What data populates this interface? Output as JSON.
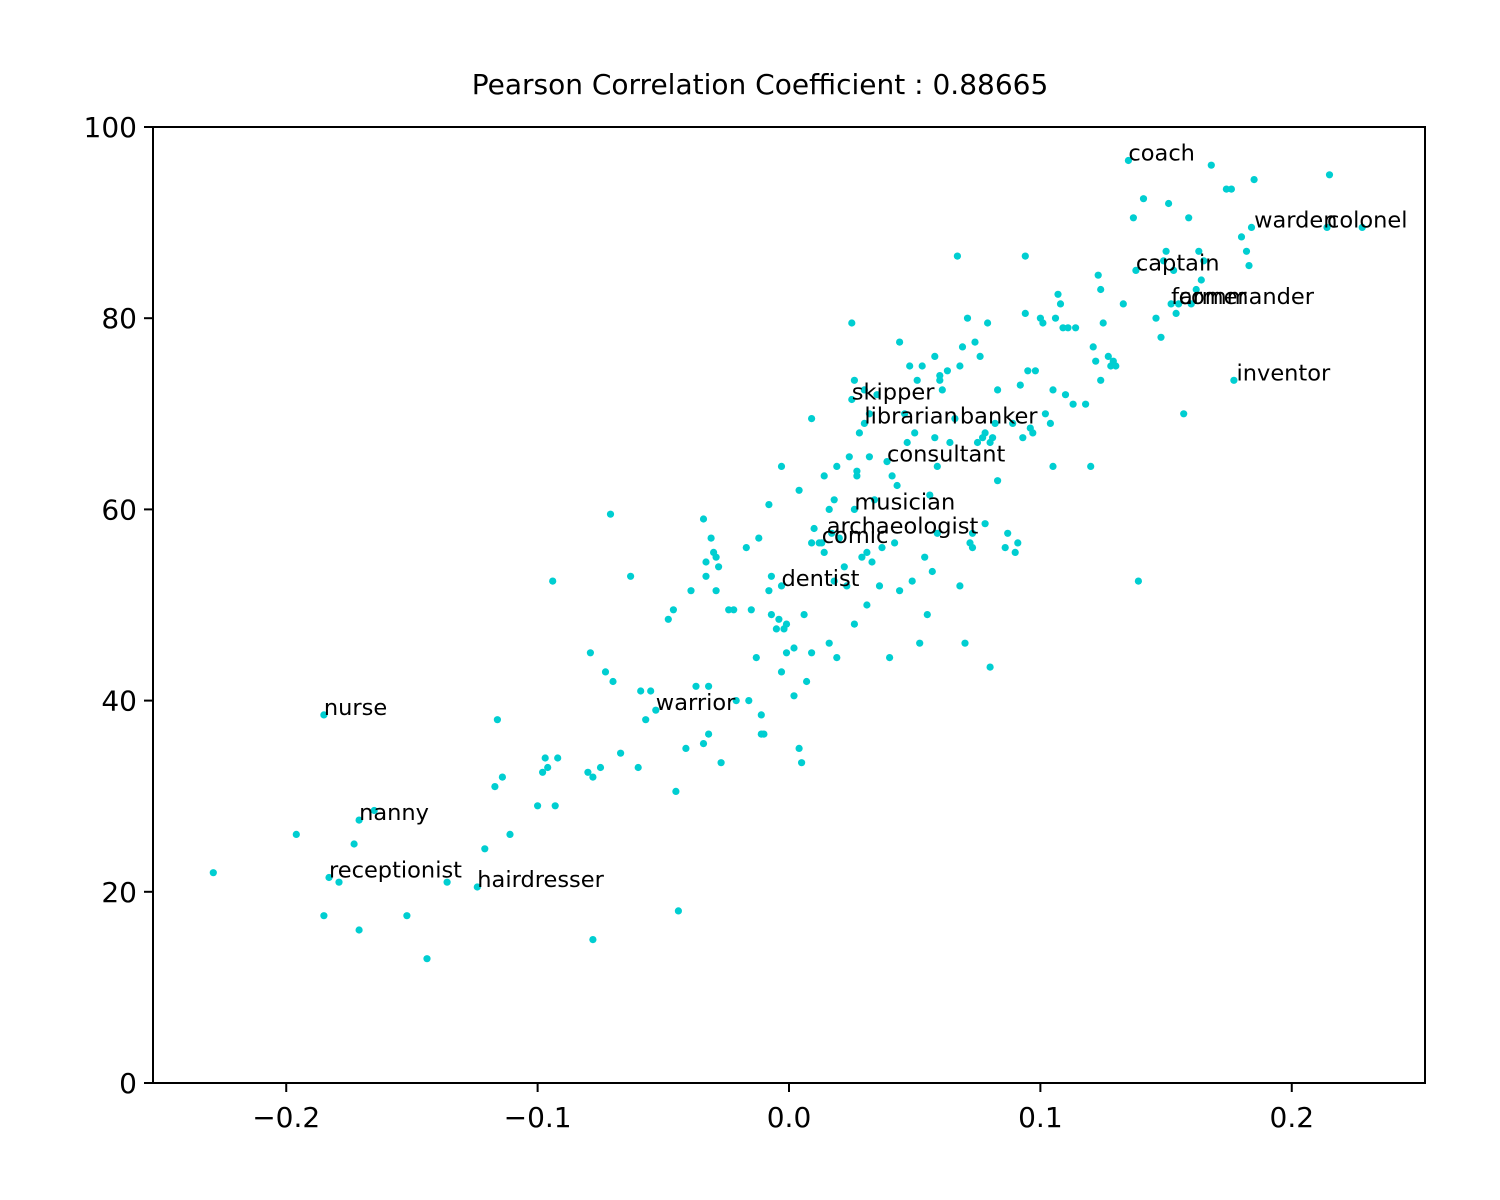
{
  "chart_data": {
    "type": "scatter",
    "title": "Pearson Correlation Coefficient : 0.88665",
    "xlabel": "",
    "ylabel": "",
    "xlim": [
      -0.253,
      0.253
    ],
    "ylim": [
      0,
      100
    ],
    "grid": false,
    "marker_color": "#00CED1",
    "x_ticks": [
      -0.2,
      -0.1,
      0.0,
      0.1,
      0.2
    ],
    "x_tick_labels": [
      "−0.2",
      "−0.1",
      "0.0",
      "0.1",
      "0.2"
    ],
    "y_ticks": [
      0,
      20,
      40,
      60,
      80,
      100
    ],
    "y_tick_labels": [
      "0",
      "20",
      "40",
      "60",
      "80",
      "100"
    ],
    "annotations": [
      {
        "label": "coach",
        "x": 0.135,
        "y": 96.5
      },
      {
        "label": "warden",
        "x": 0.185,
        "y": 89.5
      },
      {
        "label": "colonel",
        "x": 0.214,
        "y": 89.5
      },
      {
        "label": "captain",
        "x": 0.138,
        "y": 85.0
      },
      {
        "label": "farmer",
        "x": 0.152,
        "y": 81.5
      },
      {
        "label": "commander",
        "x": 0.155,
        "y": 81.5
      },
      {
        "label": "inventor",
        "x": 0.178,
        "y": 73.5
      },
      {
        "label": "skipper",
        "x": 0.025,
        "y": 71.5
      },
      {
        "label": "librarian",
        "x": 0.03,
        "y": 69.0
      },
      {
        "label": "banker",
        "x": 0.068,
        "y": 69.0
      },
      {
        "label": "consultant",
        "x": 0.039,
        "y": 65.0
      },
      {
        "label": "musician",
        "x": 0.026,
        "y": 60.0
      },
      {
        "label": "archaeologist",
        "x": 0.015,
        "y": 57.5
      },
      {
        "label": "comic",
        "x": 0.013,
        "y": 56.5
      },
      {
        "label": "dentist",
        "x": -0.003,
        "y": 52.0
      },
      {
        "label": "warrior",
        "x": -0.053,
        "y": 39.0
      },
      {
        "label": "nurse",
        "x": -0.185,
        "y": 38.5
      },
      {
        "label": "nanny",
        "x": -0.171,
        "y": 27.5
      },
      {
        "label": "receptionist",
        "x": -0.183,
        "y": 21.5
      },
      {
        "label": "hairdresser",
        "x": -0.124,
        "y": 20.5
      }
    ],
    "points": [
      [
        -0.229,
        22.0
      ],
      [
        -0.196,
        26.0
      ],
      [
        -0.185,
        38.5
      ],
      [
        -0.185,
        17.5
      ],
      [
        -0.183,
        21.5
      ],
      [
        -0.179,
        21.0
      ],
      [
        -0.173,
        25.0
      ],
      [
        -0.171,
        27.5
      ],
      [
        -0.171,
        16.0
      ],
      [
        -0.165,
        28.5
      ],
      [
        -0.152,
        17.5
      ],
      [
        -0.144,
        13.0
      ],
      [
        -0.136,
        21.0
      ],
      [
        -0.124,
        20.5
      ],
      [
        -0.121,
        24.5
      ],
      [
        -0.117,
        31.0
      ],
      [
        -0.116,
        38.0
      ],
      [
        -0.114,
        32.0
      ],
      [
        -0.111,
        26.0
      ],
      [
        -0.1,
        29.0
      ],
      [
        -0.098,
        32.5
      ],
      [
        -0.097,
        34.0
      ],
      [
        -0.096,
        33.0
      ],
      [
        -0.094,
        52.5
      ],
      [
        -0.093,
        29.0
      ],
      [
        -0.092,
        34.0
      ],
      [
        -0.08,
        32.5
      ],
      [
        -0.079,
        45.0
      ],
      [
        -0.078,
        32.0
      ],
      [
        -0.078,
        15.0
      ],
      [
        -0.075,
        33.0
      ],
      [
        -0.073,
        43.0
      ],
      [
        -0.071,
        59.5
      ],
      [
        -0.07,
        42.0
      ],
      [
        -0.067,
        34.5
      ],
      [
        -0.063,
        53.0
      ],
      [
        -0.06,
        33.0
      ],
      [
        -0.059,
        41.0
      ],
      [
        -0.057,
        38.0
      ],
      [
        -0.055,
        41.0
      ],
      [
        -0.053,
        39.0
      ],
      [
        -0.048,
        48.5
      ],
      [
        -0.046,
        49.5
      ],
      [
        -0.045,
        30.5
      ],
      [
        -0.044,
        18.0
      ],
      [
        -0.041,
        35.0
      ],
      [
        -0.039,
        51.5
      ],
      [
        -0.037,
        41.5
      ],
      [
        -0.034,
        59.0
      ],
      [
        -0.034,
        35.5
      ],
      [
        -0.033,
        53.0
      ],
      [
        -0.033,
        54.5
      ],
      [
        -0.032,
        41.5
      ],
      [
        -0.032,
        36.5
      ],
      [
        -0.031,
        57.0
      ],
      [
        -0.03,
        55.5
      ],
      [
        -0.029,
        51.5
      ],
      [
        -0.029,
        55.0
      ],
      [
        -0.028,
        54.0
      ],
      [
        -0.027,
        33.5
      ],
      [
        -0.024,
        49.5
      ],
      [
        -0.022,
        49.5
      ],
      [
        -0.021,
        40.0
      ],
      [
        -0.017,
        56.0
      ],
      [
        -0.016,
        40.0
      ],
      [
        -0.015,
        49.5
      ],
      [
        -0.013,
        44.5
      ],
      [
        -0.012,
        57.0
      ],
      [
        -0.011,
        38.5
      ],
      [
        -0.011,
        36.5
      ],
      [
        -0.01,
        36.5
      ],
      [
        -0.008,
        60.5
      ],
      [
        -0.008,
        51.5
      ],
      [
        -0.007,
        49.0
      ],
      [
        -0.007,
        53.0
      ],
      [
        -0.005,
        47.5
      ],
      [
        -0.004,
        48.5
      ],
      [
        -0.003,
        52.0
      ],
      [
        -0.003,
        43.0
      ],
      [
        -0.003,
        64.5
      ],
      [
        -0.002,
        47.5
      ],
      [
        -0.001,
        48.0
      ],
      [
        -0.001,
        45.0
      ],
      [
        0.002,
        45.5
      ],
      [
        0.002,
        40.5
      ],
      [
        0.004,
        35.0
      ],
      [
        0.004,
        62.0
      ],
      [
        0.005,
        33.5
      ],
      [
        0.006,
        49.0
      ],
      [
        0.007,
        42.0
      ],
      [
        0.009,
        45.0
      ],
      [
        0.009,
        56.5
      ],
      [
        0.009,
        69.5
      ],
      [
        0.01,
        58.0
      ],
      [
        0.012,
        56.5
      ],
      [
        0.013,
        56.5
      ],
      [
        0.014,
        55.5
      ],
      [
        0.014,
        63.5
      ],
      [
        0.016,
        46.0
      ],
      [
        0.016,
        60.0
      ],
      [
        0.017,
        57.5
      ],
      [
        0.018,
        52.5
      ],
      [
        0.018,
        61.0
      ],
      [
        0.019,
        44.5
      ],
      [
        0.019,
        64.5
      ],
      [
        0.02,
        57.0
      ],
      [
        0.022,
        54.0
      ],
      [
        0.023,
        52.0
      ],
      [
        0.024,
        65.5
      ],
      [
        0.025,
        71.5
      ],
      [
        0.025,
        79.5
      ],
      [
        0.026,
        73.5
      ],
      [
        0.026,
        60.0
      ],
      [
        0.026,
        48.0
      ],
      [
        0.027,
        64.0
      ],
      [
        0.027,
        63.5
      ],
      [
        0.028,
        68.0
      ],
      [
        0.029,
        55.0
      ],
      [
        0.03,
        69.0
      ],
      [
        0.03,
        72.5
      ],
      [
        0.031,
        50.0
      ],
      [
        0.031,
        55.5
      ],
      [
        0.032,
        70.0
      ],
      [
        0.032,
        65.5
      ],
      [
        0.033,
        54.5
      ],
      [
        0.034,
        61.0
      ],
      [
        0.035,
        72.0
      ],
      [
        0.036,
        52.0
      ],
      [
        0.037,
        56.0
      ],
      [
        0.039,
        65.0
      ],
      [
        0.04,
        44.5
      ],
      [
        0.041,
        63.5
      ],
      [
        0.042,
        56.5
      ],
      [
        0.043,
        62.5
      ],
      [
        0.044,
        77.5
      ],
      [
        0.044,
        51.5
      ],
      [
        0.046,
        70.0
      ],
      [
        0.047,
        67.0
      ],
      [
        0.048,
        75.0
      ],
      [
        0.049,
        52.5
      ],
      [
        0.05,
        68.0
      ],
      [
        0.051,
        73.5
      ],
      [
        0.052,
        46.0
      ],
      [
        0.053,
        75.0
      ],
      [
        0.054,
        55.0
      ],
      [
        0.055,
        49.0
      ],
      [
        0.056,
        61.5
      ],
      [
        0.057,
        53.5
      ],
      [
        0.058,
        67.5
      ],
      [
        0.058,
        76.0
      ],
      [
        0.059,
        57.5
      ],
      [
        0.059,
        64.5
      ],
      [
        0.06,
        73.5
      ],
      [
        0.06,
        74.0
      ],
      [
        0.061,
        72.5
      ],
      [
        0.063,
        74.5
      ],
      [
        0.064,
        67.0
      ],
      [
        0.066,
        69.5
      ],
      [
        0.067,
        86.5
      ],
      [
        0.068,
        52.0
      ],
      [
        0.068,
        75.0
      ],
      [
        0.069,
        77.0
      ],
      [
        0.07,
        46.0
      ],
      [
        0.071,
        80.0
      ],
      [
        0.072,
        56.5
      ],
      [
        0.073,
        57.5
      ],
      [
        0.073,
        56.0
      ],
      [
        0.074,
        77.5
      ],
      [
        0.075,
        67.0
      ],
      [
        0.076,
        76.0
      ],
      [
        0.077,
        67.5
      ],
      [
        0.078,
        58.5
      ],
      [
        0.078,
        68.0
      ],
      [
        0.079,
        79.5
      ],
      [
        0.08,
        43.5
      ],
      [
        0.08,
        67.0
      ],
      [
        0.081,
        67.5
      ],
      [
        0.082,
        69.0
      ],
      [
        0.083,
        72.5
      ],
      [
        0.083,
        63.0
      ],
      [
        0.086,
        56.0
      ],
      [
        0.087,
        57.5
      ],
      [
        0.089,
        69.0
      ],
      [
        0.09,
        55.5
      ],
      [
        0.091,
        56.5
      ],
      [
        0.092,
        73.0
      ],
      [
        0.093,
        67.5
      ],
      [
        0.094,
        86.5
      ],
      [
        0.094,
        80.5
      ],
      [
        0.095,
        74.5
      ],
      [
        0.096,
        68.5
      ],
      [
        0.097,
        68.0
      ],
      [
        0.098,
        74.5
      ],
      [
        0.1,
        80.0
      ],
      [
        0.101,
        79.5
      ],
      [
        0.102,
        70.0
      ],
      [
        0.104,
        69.0
      ],
      [
        0.105,
        64.5
      ],
      [
        0.105,
        72.5
      ],
      [
        0.106,
        80.0
      ],
      [
        0.107,
        82.5
      ],
      [
        0.108,
        81.5
      ],
      [
        0.109,
        79.0
      ],
      [
        0.11,
        72.0
      ],
      [
        0.111,
        79.0
      ],
      [
        0.113,
        71.0
      ],
      [
        0.114,
        79.0
      ],
      [
        0.118,
        71.0
      ],
      [
        0.12,
        64.5
      ],
      [
        0.121,
        77.0
      ],
      [
        0.122,
        75.5
      ],
      [
        0.123,
        84.5
      ],
      [
        0.124,
        73.5
      ],
      [
        0.124,
        83.0
      ],
      [
        0.125,
        79.5
      ],
      [
        0.127,
        76.0
      ],
      [
        0.128,
        75.0
      ],
      [
        0.129,
        75.5
      ],
      [
        0.13,
        75.0
      ],
      [
        0.133,
        81.5
      ],
      [
        0.135,
        96.5
      ],
      [
        0.137,
        90.5
      ],
      [
        0.138,
        85.0
      ],
      [
        0.139,
        52.5
      ],
      [
        0.141,
        92.5
      ],
      [
        0.146,
        80.0
      ],
      [
        0.148,
        78.0
      ],
      [
        0.149,
        86.0
      ],
      [
        0.15,
        87.0
      ],
      [
        0.151,
        92.0
      ],
      [
        0.152,
        81.5
      ],
      [
        0.153,
        85.0
      ],
      [
        0.154,
        80.5
      ],
      [
        0.155,
        81.5
      ],
      [
        0.157,
        70.0
      ],
      [
        0.159,
        90.5
      ],
      [
        0.16,
        81.5
      ],
      [
        0.162,
        83.0
      ],
      [
        0.163,
        87.0
      ],
      [
        0.164,
        84.0
      ],
      [
        0.165,
        86.0
      ],
      [
        0.168,
        96.0
      ],
      [
        0.174,
        93.5
      ],
      [
        0.176,
        93.5
      ],
      [
        0.177,
        73.5
      ],
      [
        0.18,
        88.5
      ],
      [
        0.182,
        87.0
      ],
      [
        0.183,
        85.5
      ],
      [
        0.184,
        89.5
      ],
      [
        0.185,
        94.5
      ],
      [
        0.214,
        89.5
      ],
      [
        0.215,
        95.0
      ],
      [
        0.228,
        89.5
      ]
    ]
  }
}
